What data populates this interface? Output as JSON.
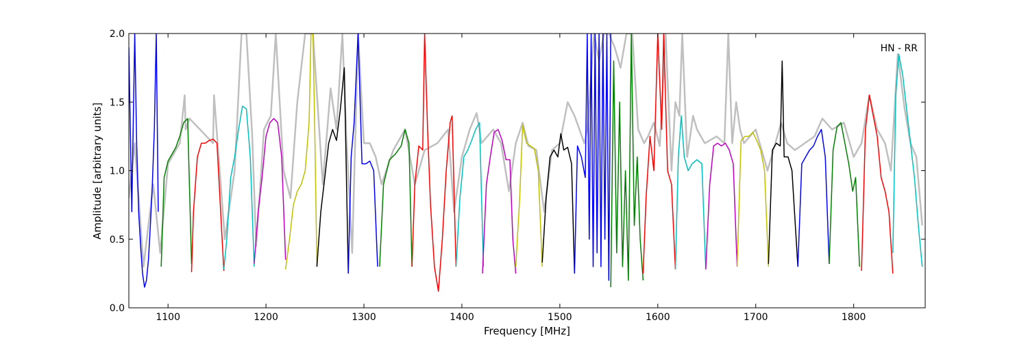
{
  "chart_data": {
    "type": "line",
    "title": "",
    "annotation": "HN - RR",
    "xlabel": "Frequency [MHz]",
    "ylabel": "Amplitude [arbitrary units]",
    "xlim": [
      1060,
      1873
    ],
    "ylim": [
      0.0,
      2.0
    ],
    "x_ticks": [
      1100,
      1200,
      1300,
      1400,
      1500,
      1600,
      1700,
      1800
    ],
    "x_tick_labels": [
      "1100",
      "1200",
      "1300",
      "1400",
      "1500",
      "1600",
      "1700",
      "1800"
    ],
    "y_ticks": [
      0.0,
      0.5,
      1.0,
      1.5,
      2.0
    ],
    "y_tick_labels": [
      "0.0",
      "0.5",
      "1.0",
      "1.5",
      "2.0"
    ],
    "grid": false,
    "background_series": {
      "color": "#bfbfbf",
      "x": [
        1060,
        1066,
        1075,
        1085,
        1092,
        1100,
        1112,
        1117,
        1118,
        1122,
        1146,
        1147,
        1158,
        1168,
        1175,
        1180,
        1186,
        1190,
        1198,
        1205,
        1210,
        1218,
        1225,
        1232,
        1240,
        1248,
        1258,
        1266,
        1272,
        1278,
        1282,
        1288,
        1294,
        1300,
        1306,
        1312,
        1318,
        1330,
        1342,
        1352,
        1362,
        1375,
        1386,
        1392,
        1400,
        1408,
        1415,
        1418,
        1420,
        1426,
        1432,
        1440,
        1448,
        1455,
        1462,
        1468,
        1476,
        1484,
        1492,
        1500,
        1508,
        1515,
        1520,
        1525,
        1528,
        1535,
        1540,
        1545,
        1550,
        1556,
        1562,
        1568,
        1574,
        1580,
        1586,
        1590,
        1596,
        1602,
        1608,
        1614,
        1618,
        1622,
        1625,
        1630,
        1636,
        1640,
        1648,
        1660,
        1668,
        1672,
        1676,
        1680,
        1684,
        1688,
        1700,
        1712,
        1720,
        1726,
        1732,
        1740,
        1750,
        1760,
        1768,
        1778,
        1790,
        1800,
        1808,
        1816,
        1824,
        1832,
        1838,
        1845,
        1852,
        1858,
        1864,
        1870
      ],
      "y": [
        0.8,
        1.2,
        0.3,
        0.9,
        0.4,
        1.05,
        1.2,
        1.55,
        1.3,
        1.38,
        1.2,
        1.55,
        0.5,
        1.0,
        2.0,
        2.0,
        1.25,
        0.45,
        1.3,
        1.4,
        2.0,
        1.0,
        0.8,
        1.5,
        2.0,
        2.0,
        0.9,
        1.6,
        1.3,
        2.0,
        1.25,
        0.4,
        2.0,
        1.2,
        1.2,
        1.1,
        0.9,
        1.15,
        1.3,
        0.9,
        1.15,
        1.2,
        1.3,
        0.7,
        1.1,
        1.3,
        1.42,
        1.3,
        1.2,
        1.25,
        1.3,
        1.2,
        0.85,
        1.2,
        1.35,
        1.18,
        1.15,
        0.7,
        1.15,
        1.2,
        1.5,
        1.4,
        1.3,
        1.2,
        1.3,
        2.0,
        1.8,
        2.0,
        2.0,
        1.9,
        1.75,
        2.0,
        2.0,
        1.3,
        1.2,
        1.25,
        1.35,
        1.18,
        2.0,
        1.0,
        1.5,
        1.4,
        2.0,
        1.1,
        1.4,
        1.3,
        1.2,
        1.25,
        1.2,
        2.0,
        1.2,
        1.5,
        1.3,
        1.2,
        1.3,
        1.0,
        1.2,
        1.35,
        1.2,
        1.15,
        1.2,
        1.25,
        1.38,
        1.3,
        1.35,
        1.1,
        1.2,
        1.55,
        1.3,
        1.2,
        1.0,
        1.85,
        1.45,
        1.2,
        1.1,
        0.6
      ]
    },
    "series": [
      {
        "color": "#0000ff",
        "x": [
          1060,
          1063,
          1066,
          1068,
          1070,
          1072,
          1074,
          1076,
          1078,
          1080,
          1082,
          1084,
          1086,
          1088,
          1090
        ],
        "y": [
          1.9,
          0.7,
          2.0,
          1.2,
          0.7,
          0.45,
          0.25,
          0.15,
          0.2,
          0.35,
          0.6,
          0.9,
          1.3,
          2.0,
          0.7
        ]
      },
      {
        "color": "#008000",
        "x": [
          1093,
          1096,
          1100,
          1104,
          1108,
          1112,
          1116,
          1120,
          1124
        ],
        "y": [
          0.3,
          0.95,
          1.07,
          1.12,
          1.17,
          1.25,
          1.35,
          1.38,
          0.32
        ]
      },
      {
        "color": "#ff0000",
        "x": [
          1124,
          1126,
          1130,
          1134,
          1138,
          1142,
          1146,
          1150,
          1153,
          1157
        ],
        "y": [
          0.26,
          0.7,
          1.1,
          1.2,
          1.2,
          1.22,
          1.23,
          1.2,
          0.8,
          0.27
        ]
      },
      {
        "color": "#00bfbf",
        "x": [
          1157,
          1160,
          1164,
          1168,
          1172,
          1176,
          1180,
          1184,
          1188
        ],
        "y": [
          0.28,
          0.5,
          0.95,
          1.1,
          1.3,
          1.47,
          1.45,
          1.1,
          0.3
        ]
      },
      {
        "color": "#bf00bf",
        "x": [
          1188,
          1192,
          1196,
          1200,
          1204,
          1208,
          1212,
          1216,
          1220
        ],
        "y": [
          0.32,
          0.7,
          0.95,
          1.25,
          1.35,
          1.38,
          1.35,
          1.1,
          0.35
        ]
      },
      {
        "color": "#bfbf00",
        "x": [
          1220,
          1224,
          1228,
          1232,
          1236,
          1240,
          1244,
          1246,
          1248,
          1250,
          1252
        ],
        "y": [
          0.28,
          0.5,
          0.75,
          0.85,
          0.9,
          1.0,
          1.35,
          2.0,
          2.0,
          1.2,
          0.3
        ]
      },
      {
        "color": "#000000",
        "x": [
          1252,
          1256,
          1260,
          1264,
          1268,
          1272,
          1276,
          1280,
          1284
        ],
        "y": [
          0.3,
          0.7,
          0.95,
          1.2,
          1.3,
          1.22,
          1.45,
          1.75,
          0.25
        ]
      },
      {
        "color": "#0000ff",
        "x": [
          1284,
          1287,
          1290,
          1294,
          1298,
          1302,
          1306,
          1310,
          1314
        ],
        "y": [
          0.25,
          1.1,
          1.35,
          2.0,
          1.05,
          1.05,
          1.07,
          1.0,
          0.3
        ]
      },
      {
        "color": "#008000",
        "x": [
          1316,
          1320,
          1326,
          1332,
          1338,
          1342,
          1346,
          1349
        ],
        "y": [
          0.3,
          0.9,
          1.08,
          1.12,
          1.18,
          1.3,
          1.2,
          0.3
        ]
      },
      {
        "color": "#ff0000",
        "x": [
          1349,
          1352,
          1356,
          1360,
          1362,
          1365,
          1368,
          1372,
          1376,
          1380,
          1384,
          1388,
          1390,
          1394
        ],
        "y": [
          0.3,
          0.9,
          1.18,
          1.15,
          2.0,
          1.3,
          0.75,
          0.3,
          0.12,
          0.5,
          1.0,
          1.35,
          1.4,
          0.3
        ]
      },
      {
        "color": "#00bfbf",
        "x": [
          1394,
          1398,
          1402,
          1406,
          1410,
          1414,
          1418,
          1422
        ],
        "y": [
          0.3,
          0.8,
          1.1,
          1.15,
          1.22,
          1.3,
          1.35,
          0.3
        ]
      },
      {
        "color": "#bf00bf",
        "x": [
          1421,
          1425,
          1429,
          1433,
          1437,
          1441,
          1445,
          1449,
          1452,
          1455
        ],
        "y": [
          0.25,
          0.9,
          1.1,
          1.28,
          1.3,
          1.22,
          1.08,
          1.08,
          0.5,
          0.25
        ]
      },
      {
        "color": "#bfbf00",
        "x": [
          1455,
          1459,
          1462,
          1466,
          1470,
          1474,
          1478,
          1482
        ],
        "y": [
          0.3,
          0.8,
          1.33,
          1.2,
          1.18,
          1.16,
          1.0,
          0.3
        ]
      },
      {
        "color": "#000000",
        "x": [
          1482,
          1486,
          1490,
          1494,
          1498,
          1501,
          1504,
          1508,
          1512,
          1515
        ],
        "y": [
          0.33,
          0.8,
          1.1,
          1.15,
          1.1,
          1.27,
          1.15,
          1.17,
          1.05,
          0.25
        ]
      },
      {
        "color": "#0000ff",
        "x": [
          1515,
          1518,
          1522,
          1526,
          1528,
          1530,
          1532,
          1534,
          1536,
          1538,
          1540,
          1542,
          1544,
          1546,
          1548,
          1550,
          1552
        ],
        "y": [
          0.25,
          1.18,
          1.1,
          0.95,
          2.0,
          0.5,
          2.0,
          0.3,
          2.0,
          0.4,
          2.0,
          0.3,
          2.0,
          0.5,
          2.0,
          0.2,
          2.0
        ]
      },
      {
        "color": "#008000",
        "x": [
          1552,
          1555,
          1558,
          1561,
          1564,
          1567,
          1570,
          1573,
          1576,
          1579,
          1582,
          1585
        ],
        "y": [
          0.15,
          1.8,
          0.4,
          1.5,
          0.3,
          1.0,
          0.2,
          2.0,
          0.6,
          1.1,
          0.5,
          0.2
        ]
      },
      {
        "color": "#ff0000",
        "x": [
          1585,
          1588,
          1592,
          1596,
          1600,
          1604,
          1606,
          1610,
          1614,
          1618
        ],
        "y": [
          0.25,
          0.8,
          1.25,
          1.0,
          2.0,
          1.3,
          2.0,
          1.0,
          0.9,
          0.28
        ]
      },
      {
        "color": "#00bfbf",
        "x": [
          1618,
          1621,
          1624,
          1627,
          1631,
          1635,
          1640,
          1645,
          1649
        ],
        "y": [
          0.28,
          1.1,
          1.4,
          1.1,
          1.0,
          1.05,
          1.08,
          1.05,
          0.28
        ]
      },
      {
        "color": "#bf00bf",
        "x": [
          1649,
          1653,
          1657,
          1661,
          1665,
          1669,
          1673,
          1677,
          1681
        ],
        "y": [
          0.28,
          0.9,
          1.18,
          1.2,
          1.18,
          1.2,
          1.15,
          1.05,
          0.3
        ]
      },
      {
        "color": "#bfbf00",
        "x": [
          1681,
          1685,
          1689,
          1693,
          1697,
          1701,
          1705,
          1709,
          1713
        ],
        "y": [
          0.3,
          1.22,
          1.25,
          1.25,
          1.28,
          1.22,
          1.15,
          1.0,
          0.3
        ]
      },
      {
        "color": "#000000",
        "x": [
          1713,
          1717,
          1721,
          1725,
          1727,
          1729,
          1733,
          1737,
          1743
        ],
        "y": [
          0.32,
          1.15,
          1.2,
          1.18,
          1.8,
          1.1,
          1.1,
          1.0,
          0.3
        ]
      },
      {
        "color": "#0000ff",
        "x": [
          1743,
          1747,
          1751,
          1755,
          1759,
          1763,
          1767,
          1771,
          1775
        ],
        "y": [
          0.3,
          1.05,
          1.1,
          1.15,
          1.18,
          1.25,
          1.3,
          1.1,
          0.32
        ]
      },
      {
        "color": "#008000",
        "x": [
          1775,
          1779,
          1783,
          1787,
          1791,
          1795,
          1799,
          1802,
          1806
        ],
        "y": [
          0.32,
          1.15,
          1.32,
          1.35,
          1.2,
          1.05,
          0.85,
          0.95,
          0.3
        ]
      },
      {
        "color": "#ff0000",
        "x": [
          1808,
          1812,
          1816,
          1820,
          1824,
          1828,
          1832,
          1836,
          1840
        ],
        "y": [
          0.27,
          1.3,
          1.55,
          1.4,
          1.25,
          0.95,
          0.85,
          0.7,
          0.25
        ]
      },
      {
        "color": "#00bfbf",
        "x": [
          1840,
          1843,
          1846,
          1850,
          1854,
          1858,
          1862,
          1866,
          1870
        ],
        "y": [
          0.4,
          1.55,
          1.85,
          1.7,
          1.45,
          1.2,
          0.95,
          0.6,
          0.3
        ]
      }
    ]
  }
}
